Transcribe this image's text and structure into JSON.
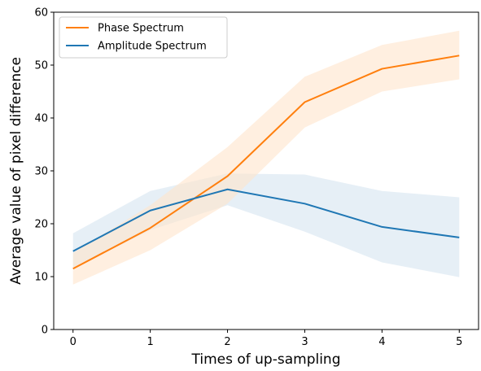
{
  "chart_data": {
    "type": "line",
    "title": "",
    "xlabel": "Times of up-sampling",
    "ylabel": "Average value of pixel difference",
    "x": [
      0,
      1,
      2,
      3,
      4,
      5
    ],
    "xlim": [
      -0.25,
      5.25
    ],
    "ylim": [
      0,
      60
    ],
    "xticks": [
      "0",
      "1",
      "2",
      "3",
      "4",
      "5"
    ],
    "yticks": [
      "0",
      "10",
      "20",
      "30",
      "40",
      "50",
      "60"
    ],
    "grid": false,
    "legend_position": "top-left",
    "series": [
      {
        "name": "Phase Spectrum",
        "color": "#ff7f0e",
        "band_color": "#ffe4cc",
        "values": [
          11.5,
          19.2,
          29.0,
          43.0,
          49.3,
          51.8
        ],
        "upper": [
          14.5,
          23.5,
          34.5,
          47.8,
          53.8,
          56.5
        ],
        "lower": [
          8.5,
          15.0,
          23.8,
          38.2,
          45.0,
          47.3
        ]
      },
      {
        "name": "Amplitude Spectrum",
        "color": "#1f77b4",
        "band_color": "#d6e4f0",
        "values": [
          14.8,
          22.5,
          26.5,
          23.8,
          19.4,
          17.4
        ],
        "upper": [
          18.2,
          26.2,
          29.5,
          29.3,
          26.2,
          25.0
        ],
        "lower": [
          11.5,
          18.8,
          23.5,
          18.5,
          12.7,
          9.9
        ]
      }
    ]
  }
}
